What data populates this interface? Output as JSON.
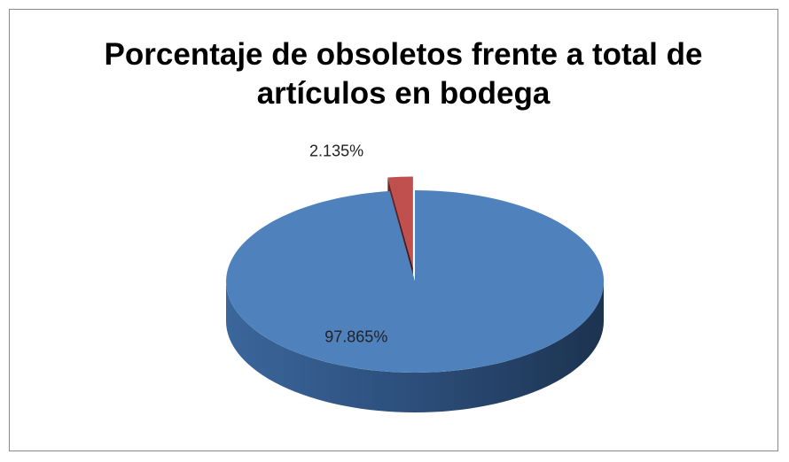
{
  "chart_data": {
    "type": "pie3d",
    "title": "Porcentaje de obsoletos frente a total de artículos en bodega",
    "values": [
      97.865,
      2.135
    ],
    "value_labels": [
      "97.865%",
      "2.135%"
    ],
    "colors": [
      "#4f81bd",
      "#c0504d"
    ],
    "exploded": [
      false,
      true
    ]
  }
}
